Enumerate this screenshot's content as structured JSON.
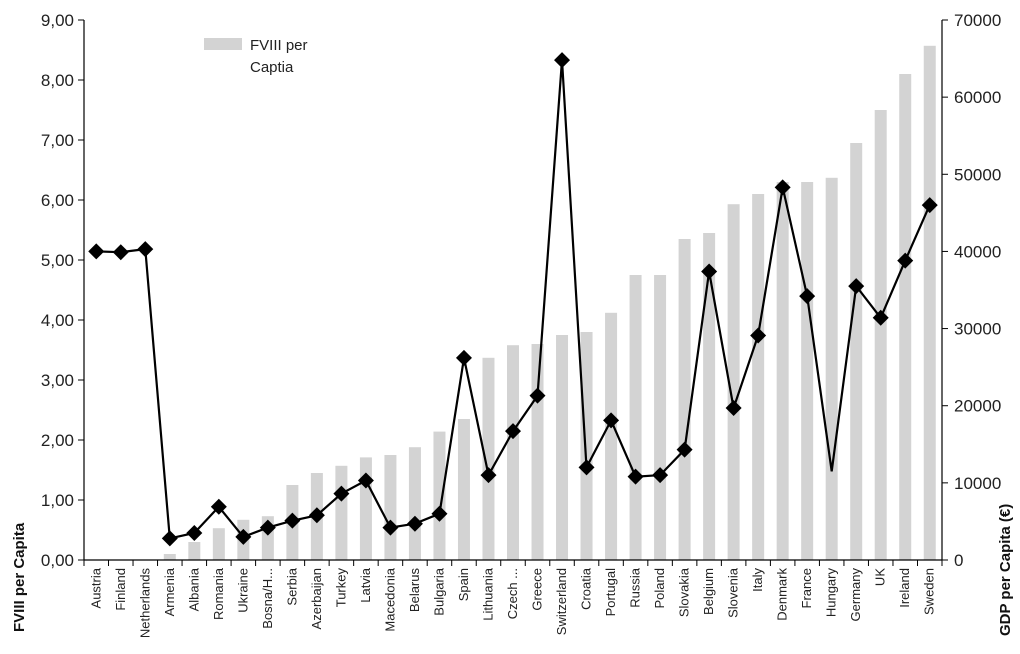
{
  "chart_data": {
    "type": "bar",
    "title": "",
    "categories": [
      "Austria",
      "Finland",
      "Netherlands",
      "Armenia",
      "Albania",
      "Romania",
      "Ukraine",
      "Bosna/H...",
      "Serbia",
      "Azerbaijan",
      "Turkey",
      "Latvia",
      "Macedonia",
      "Belarus",
      "Bulgaria",
      "Spain",
      "Lithuania",
      "Czech ...",
      "Greece",
      "Switzerland",
      "Croatia",
      "Portugal",
      "Russia",
      "Poland",
      "Slovakia",
      "Belgium",
      "Slovenia",
      "Italy",
      "Denmark",
      "France",
      "Hungary",
      "Germany",
      "UK",
      "Ireland",
      "Sweden"
    ],
    "series": [
      {
        "name": "FVIII per Captia",
        "type": "bar",
        "axis": "left",
        "color": "#d3d3d3",
        "values": [
          null,
          null,
          null,
          0.1,
          0.3,
          0.53,
          0.67,
          0.73,
          1.25,
          1.45,
          1.57,
          1.71,
          1.75,
          1.88,
          2.14,
          2.35,
          3.37,
          3.58,
          3.6,
          3.75,
          3.8,
          4.12,
          4.75,
          4.75,
          5.35,
          5.45,
          5.93,
          6.1,
          6.3,
          6.3,
          6.37,
          6.95,
          7.5,
          8.1,
          8.57
        ]
      },
      {
        "name": "",
        "type": "line",
        "axis": "right",
        "color": "#000000",
        "values": [
          40000,
          39900,
          40300,
          2800,
          3500,
          6900,
          3000,
          4200,
          5100,
          5800,
          8600,
          10300,
          4200,
          4700,
          6000,
          26200,
          11000,
          16700,
          21300,
          64800,
          12000,
          18100,
          10800,
          11000,
          14300,
          37400,
          19700,
          29100,
          48300,
          34200,
          null,
          35500,
          31400,
          38800,
          46000
        ]
      }
    ],
    "ylabel": "FVIII per Capita",
    "ylabel_right": "GDP per Capita (€)",
    "ylim": [
      0,
      9
    ],
    "ylim_right": [
      0,
      70000
    ],
    "yticks": [
      "0,00",
      "1,00",
      "2,00",
      "3,00",
      "4,00",
      "5,00",
      "6,00",
      "7,00",
      "8,00",
      "9,00"
    ],
    "yticks_right": [
      "0",
      "10000",
      "20000",
      "30000",
      "40000",
      "50000",
      "60000",
      "70000"
    ],
    "legend": {
      "position": "top-left",
      "entries": [
        "FVIII per",
        "Captia"
      ]
    },
    "grid": false
  }
}
